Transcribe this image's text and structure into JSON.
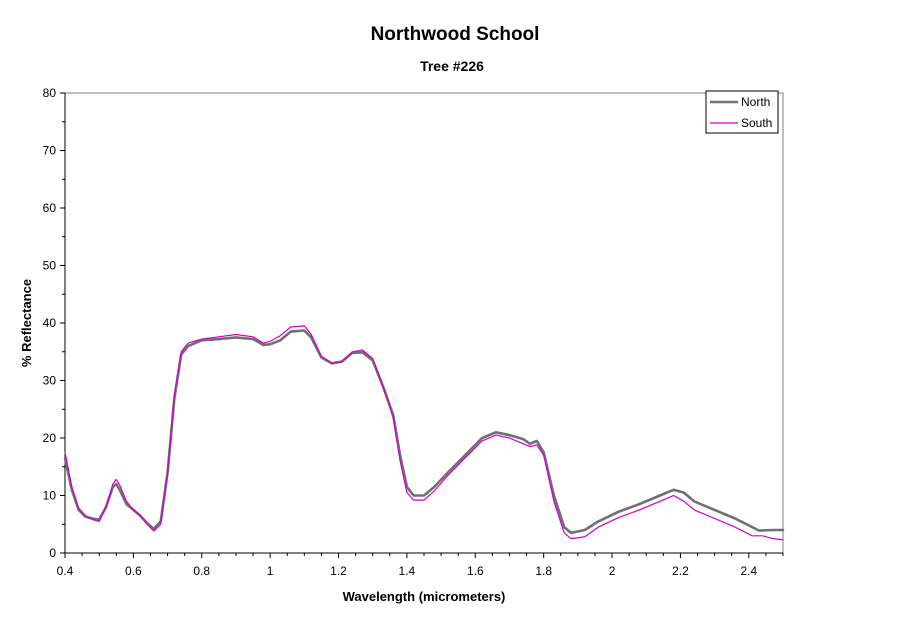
{
  "chart_data": {
    "type": "line",
    "title": "Northwood School",
    "subtitle": "Tree #226",
    "xlabel": "Wavelength (micrometers)",
    "ylabel": "% Reflectance",
    "xlim": [
      0.4,
      2.5
    ],
    "ylim": [
      0,
      80
    ],
    "x_ticks": [
      0.4,
      0.6,
      0.8,
      1,
      1.2,
      1.4,
      1.6,
      1.8,
      2,
      2.2,
      2.4
    ],
    "x_tick_labels": [
      "0.4",
      "0.6",
      "0.8",
      "1",
      "1.2",
      "1.4",
      "1.6",
      "1.8",
      "2",
      "2.2",
      "2.4"
    ],
    "y_ticks": [
      0,
      10,
      20,
      30,
      40,
      50,
      60,
      70,
      80
    ],
    "y_tick_labels": [
      "0",
      "10",
      "20",
      "30",
      "40",
      "50",
      "60",
      "70",
      "80"
    ],
    "grid": false,
    "legend_position": "top-right",
    "colors": {
      "North": "#707070",
      "South": "#cc00cc"
    },
    "series": [
      {
        "name": "North",
        "points": [
          [
            0.4,
            16.5
          ],
          [
            0.42,
            11.0
          ],
          [
            0.44,
            7.5
          ],
          [
            0.46,
            6.3
          ],
          [
            0.48,
            6.0
          ],
          [
            0.5,
            5.8
          ],
          [
            0.52,
            8.0
          ],
          [
            0.54,
            11.5
          ],
          [
            0.55,
            12.0
          ],
          [
            0.56,
            11.0
          ],
          [
            0.58,
            8.5
          ],
          [
            0.6,
            7.5
          ],
          [
            0.62,
            6.5
          ],
          [
            0.64,
            5.2
          ],
          [
            0.66,
            4.2
          ],
          [
            0.68,
            5.5
          ],
          [
            0.7,
            14.0
          ],
          [
            0.72,
            27.0
          ],
          [
            0.74,
            34.5
          ],
          [
            0.76,
            36.0
          ],
          [
            0.8,
            37.0
          ],
          [
            0.85,
            37.2
          ],
          [
            0.9,
            37.5
          ],
          [
            0.95,
            37.2
          ],
          [
            0.98,
            36.2
          ],
          [
            1.0,
            36.3
          ],
          [
            1.03,
            37.0
          ],
          [
            1.06,
            38.5
          ],
          [
            1.1,
            38.7
          ],
          [
            1.12,
            37.5
          ],
          [
            1.15,
            34.0
          ],
          [
            1.18,
            33.0
          ],
          [
            1.21,
            33.3
          ],
          [
            1.24,
            34.8
          ],
          [
            1.27,
            34.9
          ],
          [
            1.3,
            33.5
          ],
          [
            1.33,
            29.0
          ],
          [
            1.36,
            24.0
          ],
          [
            1.38,
            17.0
          ],
          [
            1.4,
            11.5
          ],
          [
            1.42,
            10.0
          ],
          [
            1.45,
            10.0
          ],
          [
            1.48,
            11.5
          ],
          [
            1.52,
            14.0
          ],
          [
            1.57,
            17.0
          ],
          [
            1.62,
            20.0
          ],
          [
            1.66,
            21.0
          ],
          [
            1.7,
            20.5
          ],
          [
            1.74,
            19.8
          ],
          [
            1.76,
            19.0
          ],
          [
            1.78,
            19.5
          ],
          [
            1.8,
            17.5
          ],
          [
            1.83,
            10.0
          ],
          [
            1.86,
            4.5
          ],
          [
            1.88,
            3.5
          ],
          [
            1.92,
            4.0
          ],
          [
            1.96,
            5.5
          ],
          [
            2.02,
            7.2
          ],
          [
            2.08,
            8.5
          ],
          [
            2.14,
            10.0
          ],
          [
            2.18,
            11.0
          ],
          [
            2.21,
            10.5
          ],
          [
            2.24,
            9.0
          ],
          [
            2.3,
            7.5
          ],
          [
            2.36,
            6.0
          ],
          [
            2.41,
            4.5
          ],
          [
            2.43,
            3.9
          ],
          [
            2.47,
            4.0
          ],
          [
            2.5,
            4.0
          ]
        ]
      },
      {
        "name": "South",
        "points": [
          [
            0.4,
            17.5
          ],
          [
            0.42,
            11.5
          ],
          [
            0.44,
            7.8
          ],
          [
            0.46,
            6.5
          ],
          [
            0.48,
            5.8
          ],
          [
            0.5,
            5.5
          ],
          [
            0.52,
            8.0
          ],
          [
            0.54,
            12.0
          ],
          [
            0.55,
            12.8
          ],
          [
            0.56,
            11.8
          ],
          [
            0.58,
            9.0
          ],
          [
            0.6,
            7.5
          ],
          [
            0.62,
            6.5
          ],
          [
            0.64,
            5.0
          ],
          [
            0.66,
            3.8
          ],
          [
            0.68,
            5.0
          ],
          [
            0.7,
            14.0
          ],
          [
            0.72,
            27.5
          ],
          [
            0.74,
            35.0
          ],
          [
            0.76,
            36.5
          ],
          [
            0.8,
            37.2
          ],
          [
            0.85,
            37.6
          ],
          [
            0.9,
            38.0
          ],
          [
            0.95,
            37.6
          ],
          [
            0.98,
            36.5
          ],
          [
            1.0,
            36.8
          ],
          [
            1.03,
            37.8
          ],
          [
            1.06,
            39.3
          ],
          [
            1.1,
            39.5
          ],
          [
            1.12,
            38.0
          ],
          [
            1.15,
            34.2
          ],
          [
            1.18,
            33.0
          ],
          [
            1.21,
            33.2
          ],
          [
            1.24,
            35.0
          ],
          [
            1.27,
            35.3
          ],
          [
            1.3,
            33.8
          ],
          [
            1.33,
            29.0
          ],
          [
            1.36,
            23.5
          ],
          [
            1.38,
            16.0
          ],
          [
            1.4,
            10.5
          ],
          [
            1.42,
            9.2
          ],
          [
            1.45,
            9.2
          ],
          [
            1.48,
            10.8
          ],
          [
            1.52,
            13.5
          ],
          [
            1.57,
            16.5
          ],
          [
            1.62,
            19.5
          ],
          [
            1.66,
            20.5
          ],
          [
            1.7,
            20.0
          ],
          [
            1.74,
            19.0
          ],
          [
            1.76,
            18.5
          ],
          [
            1.78,
            18.8
          ],
          [
            1.8,
            17.0
          ],
          [
            1.83,
            9.0
          ],
          [
            1.86,
            3.5
          ],
          [
            1.88,
            2.5
          ],
          [
            1.92,
            2.8
          ],
          [
            1.96,
            4.5
          ],
          [
            2.02,
            6.2
          ],
          [
            2.08,
            7.5
          ],
          [
            2.14,
            9.0
          ],
          [
            2.18,
            10.0
          ],
          [
            2.21,
            9.0
          ],
          [
            2.24,
            7.5
          ],
          [
            2.3,
            6.0
          ],
          [
            2.36,
            4.5
          ],
          [
            2.41,
            3.0
          ],
          [
            2.44,
            3.0
          ],
          [
            2.47,
            2.5
          ],
          [
            2.5,
            2.3
          ]
        ]
      }
    ]
  }
}
